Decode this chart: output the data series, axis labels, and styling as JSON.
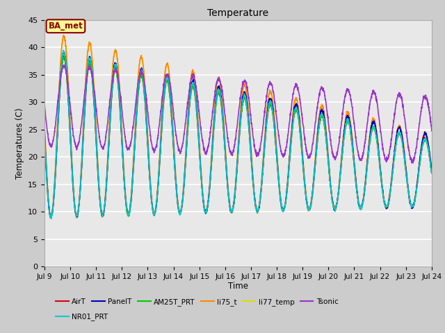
{
  "title": "Temperature",
  "xlabel": "Time",
  "ylabel": "Temperatures (C)",
  "ylim": [
    0,
    45
  ],
  "yticks": [
    0,
    5,
    10,
    15,
    20,
    25,
    30,
    35,
    40,
    45
  ],
  "x_tick_labels": [
    "Jul 9",
    "Jul 10",
    "Jul 11",
    "Jul 12",
    "Jul 13",
    "Jul 14",
    "Jul 15",
    "Jul 16",
    "Jul 17",
    "Jul 18",
    "Jul 19",
    "Jul 20",
    "Jul 21",
    "Jul 22",
    "Jul 23",
    "Jul 24"
  ],
  "annotation_text": "BA_met",
  "annotation_color": "#8B0000",
  "annotation_bg": "#FFFF99",
  "fig_bg": "#CCCCCC",
  "plot_bg": "#E8E8E8",
  "grid_color": "#FFFFFF",
  "series": {
    "AirT": {
      "color": "#DD0000",
      "lw": 1.2
    },
    "PanelT": {
      "color": "#0000BB",
      "lw": 1.2
    },
    "AM25T_PRT": {
      "color": "#00CC00",
      "lw": 1.2
    },
    "li75_t": {
      "color": "#FF8800",
      "lw": 1.2
    },
    "li77_temp": {
      "color": "#DDDD00",
      "lw": 1.2
    },
    "Tsonic": {
      "color": "#9933CC",
      "lw": 1.2
    },
    "NR01_PRT": {
      "color": "#00CCCC",
      "lw": 1.2
    }
  },
  "legend_order": [
    "AirT",
    "PanelT",
    "AM25T_PRT",
    "li75_t",
    "li77_temp",
    "Tsonic",
    "NR01_PRT"
  ]
}
